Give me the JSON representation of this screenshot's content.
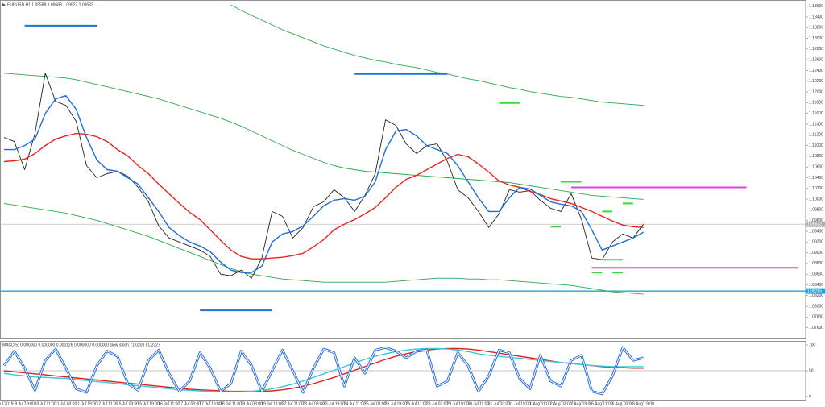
{
  "chart_data": [
    {
      "type": "line",
      "title": "EURUSD,H1 1.09588 1.09588 1.09527 1.09532",
      "categories": [
        "9 Jul 2019",
        null,
        "9 Jul 19:00",
        null,
        "10 Jul 11:00",
        null,
        "11 Jul 03:00",
        null,
        "11 Jul 19:00",
        null,
        "12 Jul 11:00",
        null,
        "15 Jul 03:00",
        null,
        "15 Jul 19:00",
        null,
        "16 Jul 11:00",
        null,
        "17 Jul 03:00",
        null,
        "17 Jul 19:00",
        null,
        "18 Jul 11:00",
        null,
        "19 Jul 03:00",
        null,
        "19 Jul 19:00",
        null,
        "22 Jul 11:00",
        null,
        "23 Jul 03:00",
        null,
        "23 Jul 19:00",
        null,
        "24 Jul 11:00",
        null,
        "25 Jul 03:00",
        null,
        "25 Jul 19:00",
        null,
        "26 Jul 11:00",
        null,
        "29 Jul 03:00",
        null,
        "29 Jul 19:00",
        null,
        "30 Jul 11:00",
        null,
        "31 Jul 03:00",
        null,
        "31 Jul 19:00",
        null,
        "1 Aug 11:00",
        null,
        "2 Aug 03:00",
        null,
        "2 Aug 19:00",
        null,
        "5 Aug 11:00",
        null,
        "6 Aug 03:00",
        null,
        "6 Aug 19:00"
      ],
      "series": [
        {
          "color": "#2aa84a",
          "values": [
            null,
            null,
            null,
            null,
            null,
            null,
            null,
            null,
            null,
            null,
            null,
            null,
            null,
            null,
            null,
            null,
            null,
            null,
            null,
            null,
            null,
            null,
            1.13625,
            1.1352,
            1.1343,
            1.1334,
            1.1325,
            1.1316,
            1.13085,
            1.1301,
            1.12935,
            1.1286,
            1.128,
            1.1274,
            1.1268,
            1.12635,
            1.1259,
            1.1256,
            1.12515,
            1.12485,
            1.12455,
            1.1241,
            1.12365,
            1.12335,
            1.1229,
            1.12245,
            1.12215,
            1.1217,
            1.12125,
            1.1208,
            1.1205,
            1.12005,
            1.11975,
            1.11945,
            1.11915,
            1.119,
            1.1187,
            1.1184,
            1.1181,
            1.11795,
            1.1178,
            1.11765,
            1.1175
          ]
        },
        {
          "color": "#2aa84a",
          "values": [
            1.1235,
            1.12335,
            1.1232,
            1.12305,
            1.1229,
            1.12275,
            1.1226,
            1.1223,
            1.12185,
            1.1214,
            1.12095,
            1.1205,
            1.12005,
            1.1196,
            1.11915,
            1.1187,
            1.1181,
            1.1175,
            1.1169,
            1.1163,
            1.1157,
            1.1151,
            1.11435,
            1.1136,
            1.1127,
            1.1118,
            1.1109,
            1.11,
            1.1091,
            1.10835,
            1.1076,
            1.10685,
            1.10625,
            1.1058,
            1.1055,
            1.1052,
            1.10505,
            1.1049,
            1.10475,
            1.1046,
            1.10445,
            1.1043,
            1.10415,
            1.104,
            1.10385,
            1.1037,
            1.10355,
            1.1034,
            1.10325,
            1.1031,
            1.1028,
            1.1025,
            1.1022,
            1.1019,
            1.1016,
            1.1013,
            1.101,
            1.1007,
            1.10055,
            1.1004,
            1.10025,
            1.1001,
            1.09995
          ]
        },
        {
          "color": "#2aa84a",
          "values": [
            1.0992,
            1.0989,
            1.0986,
            1.0983,
            1.098,
            1.0977,
            1.0974,
            1.09695,
            1.0965,
            1.09605,
            1.09545,
            1.09485,
            1.09425,
            1.09365,
            1.09305,
            1.0923,
            1.09155,
            1.0908,
            1.09005,
            1.0893,
            1.08855,
            1.0878,
            1.08705,
            1.08645,
            1.086,
            1.0857,
            1.0854,
            1.0851,
            1.08495,
            1.0848,
            1.08465,
            1.0845,
            1.0845,
            1.0845,
            1.0845,
            1.0845,
            1.0845,
            1.0845,
            1.08465,
            1.0848,
            1.08495,
            1.0851,
            1.08525,
            1.08525,
            1.08525,
            1.0851,
            1.0851,
            1.08495,
            1.08495,
            1.0848,
            1.08465,
            1.0845,
            1.08435,
            1.0842,
            1.08405,
            1.0839,
            1.0836,
            1.0833,
            1.083,
            1.0827,
            1.08255,
            1.0824,
            1.08225
          ]
        },
        {
          "color": "#222222",
          "values": [
            1.1115,
            1.11075,
            1.1055,
            1.11225,
            1.1235,
            1.11825,
            1.1175,
            1.1145,
            1.10625,
            1.104,
            1.10475,
            1.1052,
            1.1043,
            1.1022,
            1.0995,
            1.095,
            1.09275,
            1.092,
            1.09125,
            1.0905,
            1.0893,
            1.086,
            1.0857,
            1.08675,
            1.08525,
            1.089,
            1.0977,
            1.0968,
            1.09275,
            1.0947,
            1.0986,
            1.0995,
            1.10175,
            1.10025,
            1.0977,
            1.1007,
            1.10475,
            1.1148,
            1.11375,
            1.1103,
            1.1085,
            1.11,
            1.1103,
            1.107,
            1.10175,
            1.10025,
            1.0977,
            1.0947,
            1.09725,
            1.10175,
            1.1013,
            1.1016,
            1.0998,
            1.0983,
            1.0977,
            1.101,
            1.0962,
            1.089,
            1.0887,
            1.092,
            1.0935,
            1.09275,
            1.0953
          ]
        },
        {
          "color": "#e8231f",
          "values": [
            1.107,
            1.10715,
            1.10745,
            1.1085,
            1.11,
            1.1112,
            1.1118,
            1.11225,
            1.1121,
            1.11165,
            1.11075,
            1.10925,
            1.10805,
            1.10625,
            1.10475,
            1.1028,
            1.101,
            1.0992,
            1.09755,
            1.0962,
            1.09425,
            1.0923,
            1.0905,
            1.0893,
            1.08885,
            1.08885,
            1.089,
            1.08915,
            1.08945,
            1.0899,
            1.0911,
            1.09245,
            1.09425,
            1.0953,
            1.0962,
            1.09725,
            1.09845,
            1.10025,
            1.1022,
            1.1037,
            1.10445,
            1.1055,
            1.10655,
            1.1076,
            1.10835,
            1.1079,
            1.10655,
            1.10505,
            1.1034,
            1.10265,
            1.1022,
            1.10145,
            1.10085,
            1.1001,
            1.09965,
            1.0992,
            1.09845,
            1.0977,
            1.0968,
            1.0959,
            1.09515,
            1.09485,
            1.0947
          ]
        },
        {
          "color": "#1e6fd9",
          "values": [
            1.10925,
            1.10925,
            1.11,
            1.1112,
            1.116,
            1.1187,
            1.1193,
            1.11675,
            1.1115,
            1.1073,
            1.1055,
            1.1052,
            1.104,
            1.1028,
            1.10025,
            1.0977,
            1.0947,
            1.0932,
            1.092,
            1.09125,
            1.0902,
            1.08825,
            1.08675,
            1.0863,
            1.0863,
            1.0875,
            1.092,
            1.0935,
            1.09395,
            1.095,
            1.0968,
            1.09875,
            1.0998,
            1.1001,
            1.0998,
            1.10055,
            1.10325,
            1.10925,
            1.1127,
            1.113,
            1.1118,
            1.11,
            1.10925,
            1.1085,
            1.10625,
            1.10325,
            1.10025,
            1.0977,
            1.0977,
            1.10025,
            1.1022,
            1.1019,
            1.1007,
            1.0995,
            1.09905,
            1.09875,
            1.0977,
            1.09425,
            1.0905,
            1.09125,
            1.092,
            1.09275,
            1.0938
          ]
        }
      ],
      "drawings": [
        {
          "color": "#1e6fd9",
          "value": 1.13235,
          "from": 2,
          "to": 9
        },
        {
          "color": "#1e6fd9",
          "value": 1.12335,
          "from": 34,
          "to": 43
        },
        {
          "color": "#1e6fd9",
          "value": 1.07925,
          "from": 19,
          "to": 26
        },
        {
          "color": "#33dd33",
          "value": 1.11795,
          "from": 48,
          "to": 50
        },
        {
          "color": "#33dd33",
          "value": 1.10325,
          "from": 54,
          "to": 56
        },
        {
          "color": "#33dd33",
          "value": 1.09485,
          "from": 53,
          "to": 54
        },
        {
          "color": "#33dd33",
          "value": 1.0977,
          "from": 58,
          "to": 59
        },
        {
          "color": "#33dd33",
          "value": 1.0992,
          "from": 60,
          "to": 61
        },
        {
          "color": "#33dd33",
          "value": 1.0887,
          "from": 58,
          "to": 60
        },
        {
          "color": "#33dd33",
          "value": 1.0863,
          "from": 57,
          "to": 58
        },
        {
          "color": "#33dd33",
          "value": 1.0863,
          "from": 59,
          "to": 60
        },
        {
          "color": "#e040e0",
          "value": 1.1022,
          "from": 55,
          "to": 72
        },
        {
          "color": "#e040e0",
          "value": 1.0872,
          "from": 57,
          "to": 77
        }
      ],
      "levels": [
        {
          "value": 1.08285,
          "color": "#1aa6d6"
        },
        {
          "value": 1.09532,
          "color": "#b0b0b0"
        }
      ],
      "ylim": [
        1.074,
        1.137
      ],
      "yticks": [
        {
          "value": 1.076,
          "label": "1.07600"
        },
        {
          "value": 1.078,
          "label": "1.07800"
        },
        {
          "value": 1.08,
          "label": "1.08000"
        },
        {
          "value": 1.082,
          "label": "1.08200"
        },
        {
          "value": 1.084,
          "label": "1.08400"
        },
        {
          "value": 1.086,
          "label": "1.08600"
        },
        {
          "value": 1.088,
          "label": "1.08800"
        },
        {
          "value": 1.09,
          "label": "1.09000"
        },
        {
          "value": 1.092,
          "label": "1.09200"
        },
        {
          "value": 1.094,
          "label": "1.09400"
        },
        {
          "value": 1.096,
          "label": "1.09600"
        },
        {
          "value": 1.098,
          "label": "1.09800"
        },
        {
          "value": 1.1,
          "label": "1.10000"
        },
        {
          "value": 1.102,
          "label": "1.10200"
        },
        {
          "value": 1.104,
          "label": "1.10400"
        },
        {
          "value": 1.106,
          "label": "1.10600"
        },
        {
          "value": 1.108,
          "label": "1.10800"
        },
        {
          "value": 1.11,
          "label": "1.11000"
        },
        {
          "value": 1.112,
          "label": "1.11200"
        },
        {
          "value": 1.114,
          "label": "1.11400"
        },
        {
          "value": 1.116,
          "label": "1.11600"
        },
        {
          "value": 1.118,
          "label": "1.11800"
        },
        {
          "value": 1.12,
          "label": "1.12000"
        },
        {
          "value": 1.122,
          "label": "1.12200"
        },
        {
          "value": 1.124,
          "label": "1.12400"
        },
        {
          "value": 1.126,
          "label": "1.12600"
        },
        {
          "value": 1.128,
          "label": "1.12800"
        },
        {
          "value": 1.13,
          "label": "1.13000"
        },
        {
          "value": 1.132,
          "label": "1.13200"
        },
        {
          "value": 1.134,
          "label": "1.13400"
        },
        {
          "value": 1.136,
          "label": "1.13600"
        }
      ],
      "grid": false
    },
    {
      "type": "line",
      "title": "MACD(5) 0.000000 0.000000 0.000126 0.000000 0.000000 slow stoch 71.0203 61.2327",
      "series": [
        {
          "color": "#e02020",
          "values": [
            50,
            48,
            46,
            44,
            42,
            40,
            38,
            36,
            34,
            32,
            30,
            28,
            26,
            24,
            22,
            20,
            18,
            16,
            14,
            13,
            12,
            11,
            10,
            10,
            10,
            10,
            11,
            13,
            16,
            20,
            25,
            31,
            37,
            44,
            51,
            58,
            65,
            72,
            78,
            83,
            87,
            90,
            92,
            93,
            93,
            92,
            90,
            87,
            84,
            81,
            78,
            75,
            72,
            69,
            66,
            64,
            62,
            60,
            58,
            57,
            56,
            55,
            55
          ]
        },
        {
          "color": "#38c8d8",
          "values": [
            45,
            42,
            40,
            38,
            37,
            36,
            35,
            33,
            31,
            29,
            27,
            25,
            23,
            21,
            19,
            17,
            15,
            13,
            12,
            11,
            10,
            9,
            9,
            9,
            10,
            12,
            15,
            19,
            24,
            30,
            37,
            44,
            51,
            58,
            65,
            72,
            78,
            83,
            87,
            90,
            92,
            93,
            93,
            92,
            90,
            87,
            83,
            80,
            78,
            76,
            74,
            72,
            70,
            68,
            66,
            64,
            62,
            60,
            59,
            58,
            58,
            58,
            58
          ]
        },
        {
          "color": "#2b6fd6",
          "double": true,
          "values": [
            60,
            88,
            55,
            12,
            70,
            92,
            55,
            15,
            8,
            60,
            88,
            78,
            25,
            12,
            70,
            90,
            45,
            10,
            30,
            85,
            55,
            10,
            25,
            88,
            60,
            10,
            50,
            90,
            50,
            8,
            55,
            92,
            85,
            20,
            75,
            45,
            90,
            95,
            88,
            75,
            88,
            90,
            20,
            30,
            85,
            60,
            10,
            40,
            90,
            85,
            35,
            15,
            80,
            30,
            20,
            70,
            80,
            10,
            5,
            40,
            95,
            70,
            75
          ]
        }
      ],
      "levels": [
        {
          "value": 50,
          "color": "#b0b0b0"
        }
      ],
      "ylim": [
        0,
        100
      ],
      "yticks": [
        0,
        50,
        100
      ]
    }
  ]
}
